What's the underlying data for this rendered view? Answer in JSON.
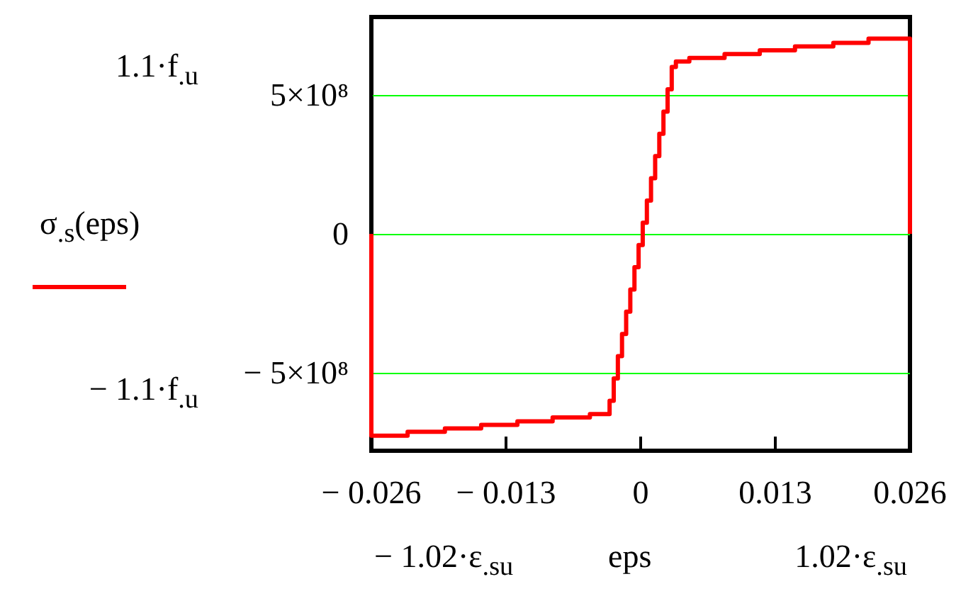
{
  "chart_data": {
    "type": "step",
    "ylabel": "σ$_{.s}$(eps)",
    "xlabel": "eps",
    "x": [
      -0.026,
      -0.026,
      -0.0225,
      -0.0189,
      -0.0154,
      -0.0119,
      -0.0085,
      -0.0049,
      -0.003,
      -0.0026,
      -0.0022,
      -0.0018,
      -0.0014,
      -0.001,
      -0.0006,
      -0.0002,
      0.0002,
      0.0006,
      0.001,
      0.0014,
      0.0018,
      0.0022,
      0.0026,
      0.003,
      0.0034,
      0.0047,
      0.0081,
      0.0115,
      0.0149,
      0.0186,
      0.022,
      0.026,
      0.026
    ],
    "series": [
      {
        "color": "#ff0000",
        "values": [
          0,
          -726000000,
          -712000000,
          -700000000,
          -687000000,
          -674000000,
          -660000000,
          -648000000,
          -600000000,
          -520000000,
          -440000000,
          -360000000,
          -280000000,
          -200000000,
          -120000000,
          -40000000,
          40000000,
          120000000,
          200000000,
          280000000,
          360000000,
          440000000,
          520000000,
          600000000,
          620000000,
          633000000,
          647000000,
          660000000,
          674000000,
          687000000,
          702000000,
          702000000,
          0
        ]
      }
    ],
    "xlim": [
      -0.026,
      0.026
    ],
    "xticks": [
      {
        "value": -0.026,
        "label": "− 0.026"
      },
      {
        "value": -0.013,
        "label": "− 0.013"
      },
      0,
      0.013,
      0.026
    ],
    "ylim": [
      -780000000,
      780000000
    ],
    "yticks": [
      {
        "value": -500000000,
        "label": "− 5×10⁸"
      },
      0,
      {
        "value": 500000000,
        "label": "5×10⁸"
      }
    ],
    "grid": "y",
    "line_style": "solid",
    "marker": "none",
    "annotations": [
      "1.1·f$_{.u}$",
      "− 1.1·f$_{.u}$",
      "− 1.02·ε$_{.su}$",
      "1.02·ε$_{.su}$"
    ]
  }
}
